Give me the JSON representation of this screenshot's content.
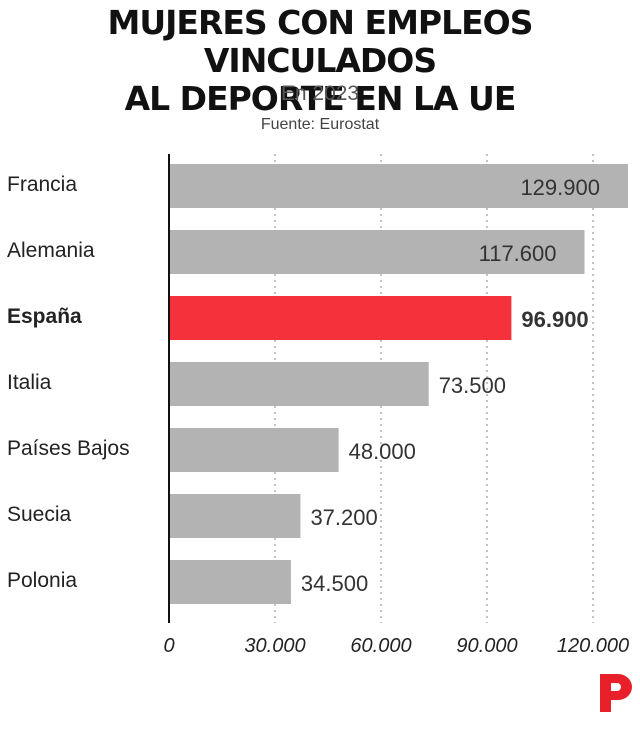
{
  "header": {
    "title_line1": "MUJERES CON EMPLEOS VINCULADOS",
    "title_line2": "AL DEPORTE EN LA UE",
    "subtitle": "En 2023",
    "source": "Fuente: Eurostat"
  },
  "colors": {
    "bar_default": "#b3b3b3",
    "bar_highlight": "#f5313b",
    "grid": "#999999",
    "axis": "#111111",
    "logo": "#e8202a"
  },
  "logo_icon": "publisher-p-logo",
  "chart_data": {
    "type": "bar",
    "orientation": "horizontal",
    "categories": [
      "Francia",
      "Alemania",
      "España",
      "Italia",
      "Países Bajos",
      "Suecia",
      "Polonia"
    ],
    "values": [
      129900,
      117600,
      96900,
      73500,
      48000,
      37200,
      34500
    ],
    "value_labels": [
      "129.900",
      "117.600",
      "96.900",
      "73.500",
      "48.000",
      "37.200",
      "34.500"
    ],
    "highlight": "España",
    "xlim": [
      0,
      130000
    ],
    "xticks": [
      0,
      30000,
      60000,
      90000,
      120000
    ],
    "xtick_labels": [
      "0",
      "30.000",
      "60.000",
      "90.000",
      "120.000"
    ],
    "grid": "vertical-dotted",
    "legend": "none"
  }
}
